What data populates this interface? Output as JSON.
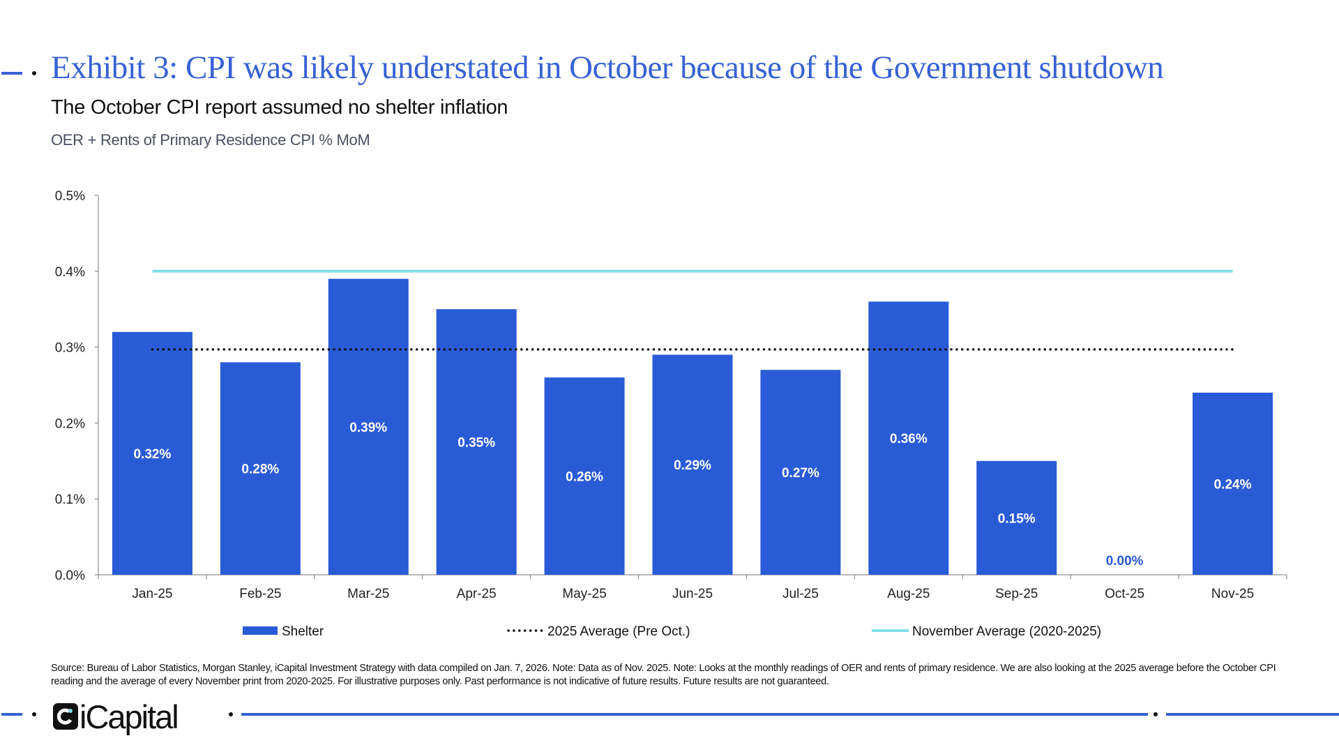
{
  "header": {
    "title": "Exhibit 3: CPI was likely understated in October because of the Government shutdown",
    "subtitle": "The October CPI report assumed no shelter inflation"
  },
  "chart_data": {
    "type": "bar",
    "title": "Exhibit 3: CPI was likely understated in October because of the Government shutdown",
    "subtitle": "The October CPI report assumed no shelter inflation",
    "ylabel": "OER + Rents of Primary Residence CPI % MoM",
    "xlabel": "",
    "categories": [
      "Jan-25",
      "Feb-25",
      "Mar-25",
      "Apr-25",
      "May-25",
      "Jun-25",
      "Jul-25",
      "Aug-25",
      "Sep-25",
      "Oct-25",
      "Nov-25"
    ],
    "series": [
      {
        "name": "Shelter",
        "values": [
          0.32,
          0.28,
          0.39,
          0.35,
          0.26,
          0.29,
          0.27,
          0.36,
          0.15,
          0.0,
          0.24
        ],
        "data_labels": [
          "0.32%",
          "0.28%",
          "0.39%",
          "0.35%",
          "0.26%",
          "0.29%",
          "0.27%",
          "0.36%",
          "0.15%",
          "0.00%",
          "0.24%"
        ],
        "color": "#2a5bd7"
      }
    ],
    "reference_lines": [
      {
        "name": "2025 Average (Pre Oct.)",
        "value": 0.297,
        "style": "dotted",
        "color": "#111111"
      },
      {
        "name": "November Average (2020-2025)",
        "value": 0.4,
        "style": "solid",
        "color": "#7fe0e6"
      }
    ],
    "ylim": [
      0,
      0.5
    ],
    "yticks": [
      "0.0%",
      "0.1%",
      "0.2%",
      "0.3%",
      "0.4%",
      "0.5%"
    ],
    "grid": false,
    "legend_position": "bottom"
  },
  "footnote": "Source: Bureau of Labor Statistics, Morgan Stanley, iCapital Investment Strategy with data compiled on Jan. 7, 2026. Note: Data as of Nov. 2025. Note: Looks at the monthly readings of OER and rents of primary residence. We are also looking at the 2025 average before the October CPI reading and the average of every November print from 2020-2025. For illustrative purposes only. Past performance is not indicative of future results. Future results are not guaranteed.",
  "footer": {
    "logo_text": "iCapital",
    "accent_color": "#3761d4"
  }
}
